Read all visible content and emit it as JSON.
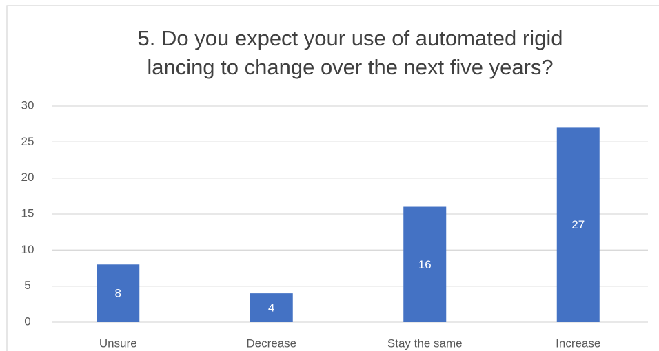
{
  "chart_data": {
    "type": "bar",
    "title": [
      "5. Do you expect your use of automated rigid",
      "lancing to change over the next five years?"
    ],
    "categories": [
      "Unsure",
      "Decrease",
      "Stay the same",
      "Increase"
    ],
    "values": [
      8,
      4,
      16,
      27
    ],
    "color": "#4472c4",
    "ylim": [
      0,
      30
    ],
    "yticks": [
      0,
      5,
      10,
      15,
      20,
      25,
      30
    ],
    "grid": true,
    "data_labels": true
  }
}
